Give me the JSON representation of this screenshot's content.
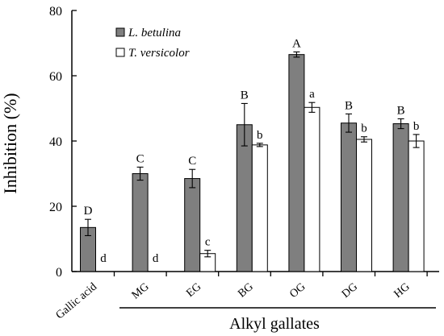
{
  "chart_data": {
    "type": "bar",
    "ylabel": "Inhibition (%)",
    "group_label": "Alkyl gallates",
    "ylim": [
      0,
      80
    ],
    "yticks": [
      0,
      20,
      40,
      60,
      80
    ],
    "categories": [
      "Gallic acid",
      "MG",
      "EG",
      "BG",
      "OG",
      "DG",
      "HG"
    ],
    "legend_position": "top-left",
    "series": [
      {
        "name": "L. betulina",
        "color": "#7f7f7f",
        "values": [
          13.5,
          30,
          28.5,
          45,
          66.5,
          45.5,
          45.3
        ],
        "errors": [
          2.5,
          2.0,
          2.8,
          6.5,
          0.8,
          2.8,
          1.5
        ],
        "letters": [
          "D",
          "C",
          "C",
          "B",
          "A",
          "B",
          "B"
        ]
      },
      {
        "name": "T. versicolor",
        "color": "#ffffff",
        "values": [
          0,
          0,
          5.5,
          38.8,
          50.3,
          40.5,
          40
        ],
        "errors": [
          0,
          0,
          1.0,
          0.5,
          1.5,
          0.8,
          2.0
        ],
        "letters": [
          "d",
          "d",
          "c",
          "b",
          "a",
          "b",
          "b"
        ]
      }
    ]
  }
}
